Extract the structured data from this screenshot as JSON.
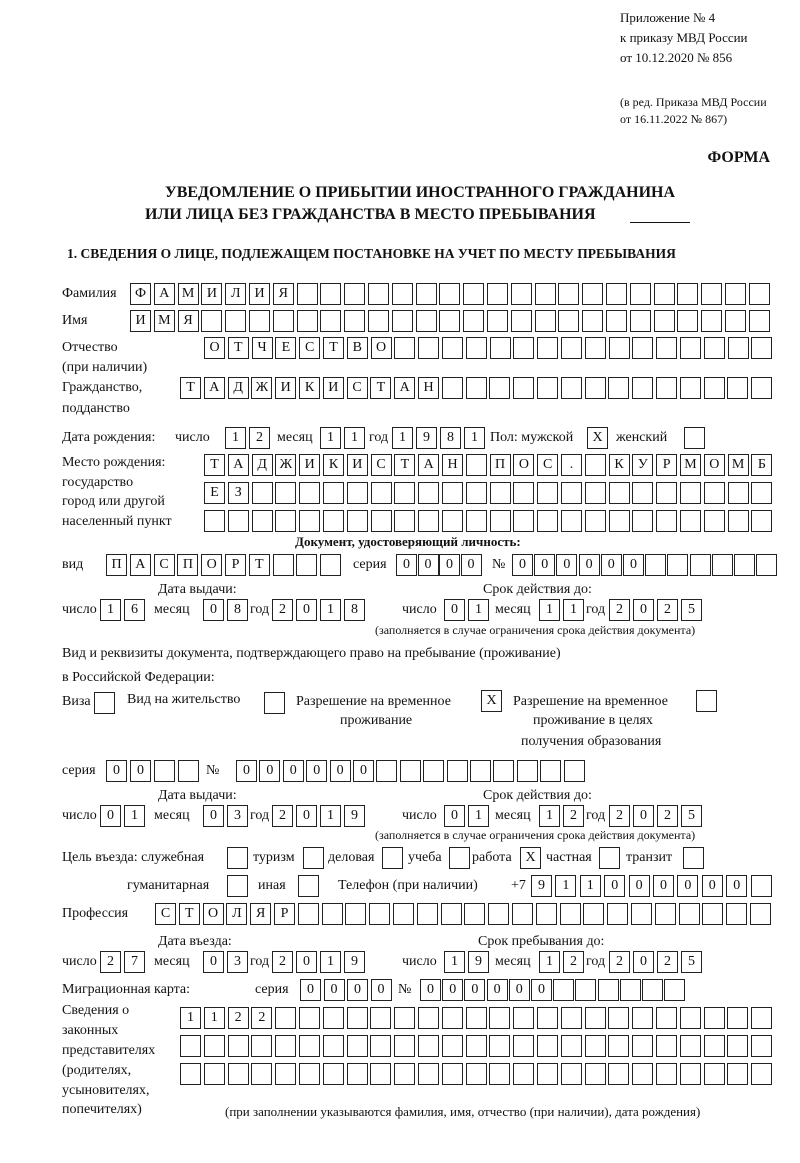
{
  "header": {
    "appendix": "Приложение № 4",
    "order": "к приказу МВД России",
    "order_date": "от 10.12.2020 № 856",
    "edition_1": "(в ред. Приказа МВД России",
    "edition_2": "от 16.11.2022 № 867)",
    "form_label": "ФОРМА",
    "title_1": "УВЕДОМЛЕНИЕ О ПРИБЫТИИ ИНОСТРАННОГО ГРАЖДАНИНА",
    "title_2": "ИЛИ ЛИЦА БЕЗ ГРАЖДАНСТВА В МЕСТО ПРЕБЫВАНИЯ",
    "section_1": "1. СВЕДЕНИЯ О ЛИЦЕ, ПОДЛЕЖАЩЕМ ПОСТАНОВКЕ НА УЧЕТ ПО МЕСТУ ПРЕБЫВАНИЯ"
  },
  "labels": {
    "surname": "Фамилия",
    "name": "Имя",
    "patronymic": "Отчество",
    "patronymic_note": "(при наличии)",
    "citizenship": "Гражданство,",
    "citizenship_2": "подданство",
    "birth_date": "Дата рождения:",
    "day": "число",
    "month": "месяц",
    "year": "год",
    "sex": "Пол: мужской",
    "female": "женский",
    "birth_place_1": "Место рождения:",
    "birth_place_2": "государство",
    "birth_place_3": "город или другой",
    "birth_place_4": "населенный пункт",
    "id_doc": "Документ, удостоверяющий личность:",
    "kind": "вид",
    "series": "серия",
    "number": "№",
    "issue_date": "Дата выдачи:",
    "valid_until": "Срок действия до:",
    "validity_note": "(заполняется в случае ограничения срока действия документа)",
    "right_doc_1": "Вид и реквизиты документа, подтверждающего право на пребывание (проживание)",
    "right_doc_2": "в Российской Федерации:",
    "visa": "Виза",
    "residence_permit": "Вид на жительство",
    "temp_residence_1": "Разрешение на временное",
    "temp_residence_2": "проживание",
    "temp_edu_1": "Разрешение на временное",
    "temp_edu_2": "проживание в целях",
    "temp_edu_3": "получения образования",
    "purpose": "Цель въезда: служебная",
    "tourism": "туризм",
    "business": "деловая",
    "study": "учеба",
    "work": "работа",
    "private": "частная",
    "transit": "транзит",
    "humanitarian": "гуманитарная",
    "other": "иная",
    "phone": "Телефон (при наличии)",
    "phone_prefix": "+7",
    "profession": "Профессия",
    "entry_date": "Дата въезда:",
    "stay_until": "Срок пребывания до:",
    "migration_card": "Миграционная карта:",
    "reps_1": "Сведения о",
    "reps_2": "законных",
    "reps_3": "представителях",
    "reps_4": "(родителях,",
    "reps_5": "усыновителях,",
    "reps_6": "попечителях)",
    "reps_note": "(при заполнении указываются фамилия, имя, отчество (при наличии), дата рождения)"
  },
  "fields": {
    "surname": "ФАМИЛИЯ",
    "name": "ИМЯ",
    "patronymic": "ОТЧЕСТВО",
    "citizenship": "ТАДЖИКИСТАН",
    "birth_day": "12",
    "birth_month": "11",
    "birth_year": "1981",
    "sex_male": "X",
    "sex_female": "",
    "birth_place_1": "ТАДЖИКИСТАН ПОС. КУРМОМБ",
    "birth_place_2": "ЕЗ",
    "birth_place_3": "",
    "id_kind": "ПАСПОРТ",
    "id_series": "0000",
    "id_number": "000000",
    "id_issue_day": "16",
    "id_issue_month": "08",
    "id_issue_year": "2018",
    "id_valid_day": "01",
    "id_valid_month": "11",
    "id_valid_year": "2025",
    "visa": "",
    "residence_permit": "",
    "temp_residence": "X",
    "temp_edu": "",
    "right_series": "00",
    "right_number": "000000",
    "right_issue_day": "01",
    "right_issue_month": "03",
    "right_issue_year": "2019",
    "right_valid_day": "01",
    "right_valid_month": "12",
    "right_valid_year": "2025",
    "purpose_official": "",
    "purpose_tourism": "",
    "purpose_business": "",
    "purpose_study": "",
    "purpose_work": "X",
    "purpose_private": "",
    "purpose_transit": "",
    "purpose_humanitarian": "",
    "purpose_other": "",
    "phone": "911000000",
    "profession": "СТОЛЯР",
    "entry_day": "27",
    "entry_month": "03",
    "entry_year": "2019",
    "stay_day": "19",
    "stay_month": "12",
    "stay_year": "2025",
    "mc_series": "0000",
    "mc_number": "000000",
    "reps_1": "1122",
    "reps_2": "",
    "reps_3": ""
  }
}
